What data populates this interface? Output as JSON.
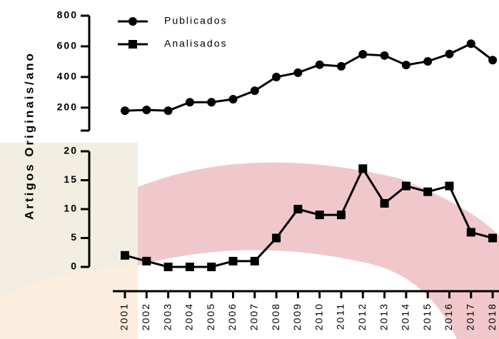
{
  "chart_data": {
    "type": "line",
    "y_label": "Artigos Originais/ano",
    "categories": [
      "2001",
      "2002",
      "2003",
      "2004",
      "2005",
      "2006",
      "2007",
      "2008",
      "2009",
      "2010",
      "2011",
      "2012",
      "2013",
      "2014",
      "2015",
      "2016",
      "2017",
      "2018"
    ],
    "series": [
      {
        "name": "Publicados",
        "color": "#000000",
        "marker": "circle",
        "panel": "top",
        "values": [
          180,
          185,
          180,
          235,
          235,
          255,
          310,
          400,
          428,
          480,
          470,
          548,
          540,
          478,
          502,
          550,
          617,
          510
        ]
      },
      {
        "name": "Analisados",
        "color": "#000000",
        "marker": "square",
        "panel": "bottom",
        "values": [
          2,
          1,
          0,
          0,
          0,
          1,
          1,
          5,
          10,
          9,
          9,
          17,
          11,
          14,
          13,
          14,
          6,
          5
        ]
      }
    ],
    "ylim_top": [
      50,
      800
    ],
    "yticks_top": [
      200,
      400,
      600,
      800
    ],
    "ylim_bottom": [
      0,
      20
    ],
    "yticks_bottom": [
      0,
      5,
      10,
      15,
      20
    ],
    "grid": false
  }
}
